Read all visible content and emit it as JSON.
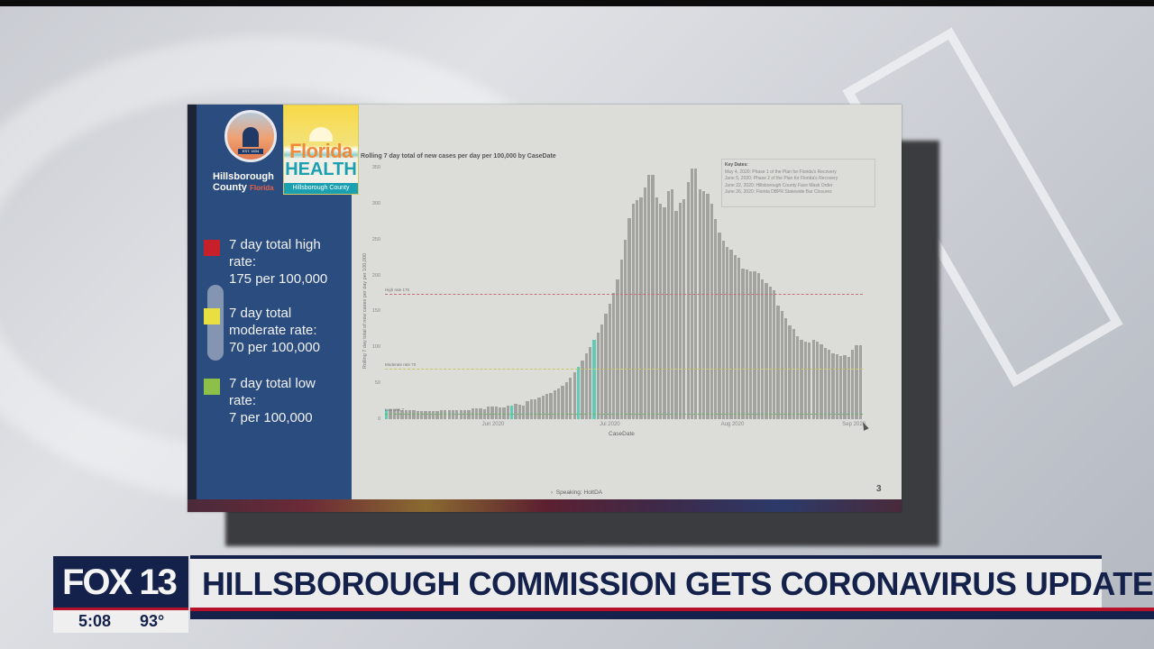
{
  "broadcast": {
    "station_logo": "FOX 13",
    "time": "5:08",
    "temperature": "93°",
    "headline": "HILLSBOROUGH COMMISSION GETS CORONAVIRUS UPDATE",
    "colors": {
      "navy": "#14214b",
      "red": "#b7102a",
      "light": "#ececec"
    }
  },
  "slide": {
    "county_logo": {
      "name_line1": "Hillsborough",
      "name_line2": "County",
      "state": "Florida",
      "seal_text": "EST. 1834"
    },
    "health_logo": {
      "line1": "Florida",
      "line2": "HEALTH",
      "line3": "Hillsborough County"
    },
    "legend": [
      {
        "color": "#c8202a",
        "line1": "7 day total high",
        "line2": "rate:",
        "line3": "175 per 100,000"
      },
      {
        "color": "#e8e040",
        "line1": "7 day total",
        "line2": "moderate rate:",
        "line3": "70 per 100,000"
      },
      {
        "color": "#8cc048",
        "line1": "7 day total low",
        "line2": "rate:",
        "line3": " 7 per 100,000"
      }
    ],
    "key_dates": {
      "title": "Key Dates:",
      "items": [
        "May 4, 2020: Phase 1 of the Plan for Florida's Recovery",
        "June 5, 2020: Phase 2 of the Plan for Florida's Recovery",
        "June 22, 2020: Hillsborough County Face Mask Order",
        "June 26, 2020: Florida DBPR Statewide Bar Closures"
      ]
    },
    "speaking": "Speaking: HoltDA",
    "page_number": "3"
  },
  "chart_data": {
    "type": "bar",
    "title": "Rolling 7 day total of new cases per day per 100,000 by CaseDate",
    "xlabel": "CaseDate",
    "ylabel": "Rolling 7 day total of new cases per day per 100,000",
    "ylim": [
      0,
      350
    ],
    "yticks": [
      0,
      50,
      100,
      150,
      200,
      250,
      300,
      350
    ],
    "xtick_labels": [
      "Jun 2020",
      "Jul 2020",
      "Aug 2020",
      "Sep 2020"
    ],
    "x_start": "2020-05-04",
    "x_end": "2020-09-01",
    "highlighted_dates": [
      "2020-05-04",
      "2020-06-05",
      "2020-06-22",
      "2020-06-26"
    ],
    "highlight_color": "#62cbb8",
    "bar_color": "#a2a29e",
    "reference_lines": [
      {
        "label": "High rate 175",
        "value": 175,
        "color": "#c87070"
      },
      {
        "label": "Moderate rate 70",
        "value": 70,
        "color": "#c8c860"
      },
      {
        "label": "Low rate 7",
        "value": 7,
        "color": "#70b070"
      }
    ],
    "values": [
      14,
      14,
      14,
      14,
      13,
      12,
      12,
      12,
      11,
      11,
      11,
      11,
      11,
      11,
      12,
      12,
      12,
      13,
      13,
      13,
      12,
      13,
      15,
      15,
      15,
      14,
      17,
      18,
      18,
      16,
      16,
      19,
      19,
      21,
      20,
      19,
      25,
      27,
      27,
      30,
      33,
      35,
      37,
      40,
      43,
      47,
      52,
      58,
      65,
      73,
      82,
      91,
      100,
      110,
      120,
      132,
      147,
      160,
      176,
      195,
      222,
      250,
      280,
      300,
      305,
      308,
      322,
      340,
      340,
      308,
      300,
      295,
      318,
      320,
      290,
      301,
      306,
      330,
      349,
      349,
      320,
      317,
      314,
      300,
      278,
      260,
      248,
      240,
      236,
      228,
      225,
      210,
      208,
      206,
      206,
      203,
      195,
      190,
      185,
      180,
      158,
      150,
      140,
      130,
      125,
      115,
      110,
      108,
      107,
      110,
      108,
      104,
      99,
      96,
      91,
      90,
      88,
      89,
      87,
      97,
      103,
      103
    ]
  }
}
